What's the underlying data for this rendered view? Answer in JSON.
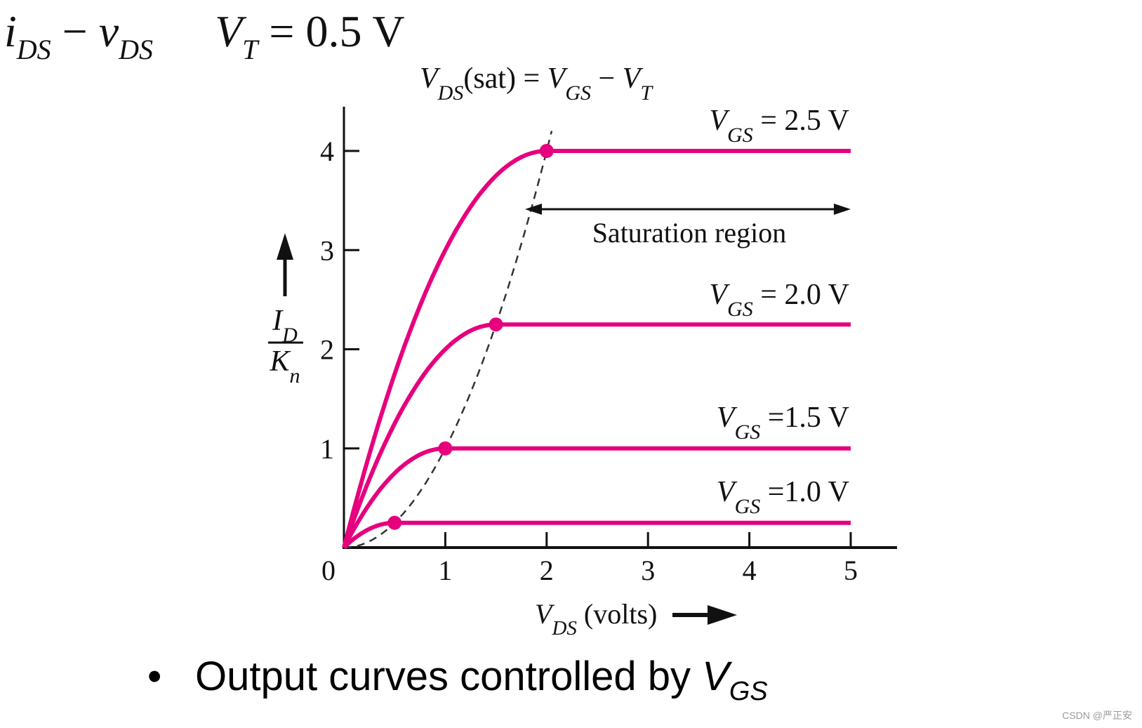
{
  "heading": {
    "lhs_i": "i",
    "lhs_i_sub": "DS",
    "minus": " − ",
    "lhs_v": "v",
    "lhs_v_sub": "DS",
    "vt_symbol": "V",
    "vt_sub": "T",
    "vt_value": " = 0.5 V"
  },
  "bullet": {
    "text": "Output curves controlled by ",
    "var": "V",
    "var_sub": "GS"
  },
  "watermark": "CSDN @严正安",
  "colors": {
    "curve": "#e6007e",
    "axis": "#111111",
    "dashed": "#333333"
  },
  "chart_data": {
    "type": "line",
    "xlabel": "V_DS (volts)",
    "ylabel": "I_D / K_n",
    "xlim": [
      0,
      5
    ],
    "ylim": [
      0,
      4
    ],
    "x_ticks": [
      "0",
      "1",
      "2",
      "3",
      "4",
      "5"
    ],
    "y_ticks": [
      "1",
      "2",
      "3",
      "4"
    ],
    "vt": 0.5,
    "series": [
      {
        "name": "V_GS = 2.5 V",
        "vgs": 2.5,
        "vdsat": 2.0,
        "i_sat": 4.0
      },
      {
        "name": "V_GS = 2.0 V",
        "vgs": 2.0,
        "vdsat": 1.5,
        "i_sat": 2.25
      },
      {
        "name": "V_GS =1.5 V",
        "vgs": 1.5,
        "vdsat": 1.0,
        "i_sat": 1.0
      },
      {
        "name": "V_GS =1.0 V",
        "vgs": 1.0,
        "vdsat": 0.5,
        "i_sat": 0.25
      }
    ],
    "annotations": {
      "boundary": "V_DS(sat) = V_GS − V_T",
      "region": "Saturation region"
    }
  }
}
